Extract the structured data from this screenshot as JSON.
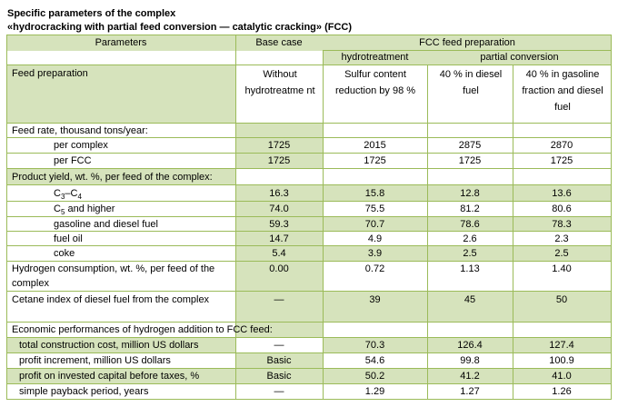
{
  "title_line1": "Specific parameters of the complex",
  "title_line2": "«hydrocracking with partial feed conversion — catalytic cracking» (FCC)",
  "header": {
    "parameters": "Parameters",
    "base_case": "Base case",
    "fcc_feed_preparation": "FCC feed preparation",
    "hydrotreatment": "hydrotreatment",
    "partial_conversion": "partial conversion"
  },
  "feed_preparation": {
    "label": "Feed preparation",
    "base": "Without hydrotreatme nt",
    "hydro": "Sulfur content reduction by 98 %",
    "pc1": "40 % in diesel fuel",
    "pc2": "40 % in gasoline fraction and diesel fuel"
  },
  "sections": {
    "feed_rate": "Feed rate, thousand tons/year:",
    "product_yield": "Product yield, wt. %, per feed of the complex:",
    "economic": "Economic performances of hydrogen addition to FCC feed:"
  },
  "rows": {
    "per_complex": {
      "label": "per complex",
      "base": "1725",
      "hydro": "2015",
      "pc1": "2875",
      "pc2": "2870"
    },
    "per_fcc": {
      "label": "per FCC",
      "base": "1725",
      "hydro": "1725",
      "pc1": "1725",
      "pc2": "1725"
    },
    "c3c4": {
      "label": "C3–C4",
      "base": "16.3",
      "hydro": "15.8",
      "pc1": "12.8",
      "pc2": "13.6"
    },
    "c5": {
      "label": "C5 and higher",
      "base": "74.0",
      "hydro": "75.5",
      "pc1": "81.2",
      "pc2": "80.6"
    },
    "gasoline": {
      "label": "gasoline and diesel fuel",
      "base": "59.3",
      "hydro": "70.7",
      "pc1": "78.6",
      "pc2": "78.3"
    },
    "fuel_oil": {
      "label": "fuel oil",
      "base": "14.7",
      "hydro": "4.9",
      "pc1": "2.6",
      "pc2": "2.3"
    },
    "coke": {
      "label": "coke",
      "base": "5.4",
      "hydro": "3.9",
      "pc1": "2.5",
      "pc2": "2.5"
    },
    "hydrogen": {
      "label": "Hydrogen consumption, wt. %, per feed of the complex",
      "base": "0.00",
      "hydro": "0.72",
      "pc1": "1.13",
      "pc2": "1.40"
    },
    "cetane": {
      "label": "Cetane index of diesel fuel from the complex",
      "base": "—",
      "hydro": "39",
      "pc1": "45",
      "pc2": "50"
    },
    "construction": {
      "label": "total construction cost, million US dollars",
      "base": "—",
      "hydro": "70.3",
      "pc1": "126.4",
      "pc2": "127.4"
    },
    "profit_increment": {
      "label": "profit increment, million US dollars",
      "base": "Basic",
      "hydro": "54.6",
      "pc1": "99.8",
      "pc2": "100.9"
    },
    "profit_capital": {
      "label": "profit on invested capital before taxes, %",
      "base": "Basic",
      "hydro": "50.2",
      "pc1": "41.2",
      "pc2": "41.0"
    },
    "payback": {
      "label": "simple payback period, years",
      "base": "—",
      "hydro": "1.29",
      "pc1": "1.27",
      "pc2": "1.26"
    }
  }
}
